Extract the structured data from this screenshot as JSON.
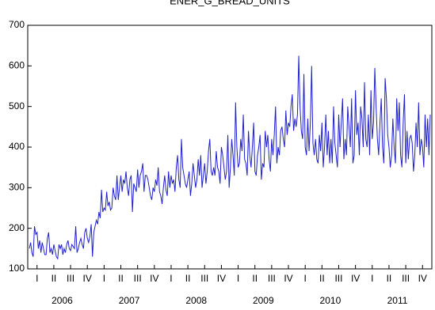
{
  "chart_data": {
    "type": "line",
    "title": "ENER_G_BREAD_UNITS",
    "series": [
      {
        "name": "ENER_G_BREAD_UNITS",
        "color": "#1f1fd0",
        "values": [
          150,
          165,
          140,
          130,
          205,
          185,
          190,
          150,
          170,
          140,
          165,
          150,
          135,
          135,
          175,
          190,
          140,
          150,
          135,
          160,
          145,
          130,
          125,
          160,
          150,
          160,
          135,
          150,
          140,
          160,
          170,
          150,
          145,
          160,
          155,
          150,
          205,
          140,
          150,
          165,
          175,
          160,
          150,
          190,
          200,
          175,
          165,
          180,
          210,
          130,
          190,
          205,
          220,
          210,
          240,
          225,
          295,
          240,
          250,
          245,
          290,
          255,
          265,
          245,
          250,
          300,
          280,
          270,
          330,
          270,
          300,
          330,
          290,
          320,
          310,
          340,
          300,
          280,
          320,
          330,
          240,
          310,
          300,
          290,
          345,
          300,
          330,
          340,
          360,
          290,
          330,
          330,
          320,
          300,
          280,
          270,
          300,
          290,
          320,
          305,
          350,
          290,
          280,
          260,
          300,
          330,
          295,
          280,
          340,
          300,
          330,
          310,
          320,
          290,
          350,
          380,
          320,
          300,
          420,
          350,
          330,
          310,
          300,
          320,
          340,
          280,
          310,
          360,
          330,
          300,
          320,
          370,
          330,
          380,
          300,
          330,
          360,
          310,
          340,
          390,
          420,
          340,
          330,
          350,
          330,
          390,
          350,
          340,
          310,
          400,
          380,
          350,
          320,
          340,
          430,
          300,
          350,
          420,
          380,
          330,
          510,
          400,
          350,
          360,
          420,
          390,
          480,
          370,
          360,
          330,
          440,
          380,
          350,
          400,
          460,
          340,
          330,
          380,
          400,
          430,
          320,
          360,
          350,
          440,
          400,
          430,
          370,
          340,
          420,
          380,
          430,
          500,
          360,
          400,
          380,
          440,
          450,
          420,
          400,
          490,
          430,
          460,
          450,
          500,
          530,
          440,
          470,
          450,
          480,
          625,
          500,
          440,
          420,
          580,
          400,
          380,
          470,
          390,
          460,
          600,
          410,
          380,
          420,
          370,
          360,
          430,
          390,
          460,
          350,
          400,
          480,
          380,
          440,
          360,
          420,
          360,
          500,
          410,
          380,
          350,
          480,
          400,
          460,
          520,
          370,
          420,
          380,
          500,
          450,
          400,
          520,
          360,
          380,
          540,
          430,
          460,
          380,
          500,
          470,
          400,
          560,
          420,
          400,
          480,
          380,
          540,
          420,
          460,
          595,
          500,
          420,
          380,
          460,
          520,
          400,
          360,
          570,
          520,
          430,
          400,
          350,
          380,
          470,
          400,
          360,
          520,
          440,
          510,
          380,
          350,
          460,
          530,
          360,
          440,
          370,
          420,
          430,
          410,
          340,
          380,
          460,
          400,
          510,
          380,
          420,
          400,
          350,
          480,
          400,
          470,
          380,
          480
        ]
      }
    ],
    "xlim": [
      0,
      311
    ],
    "xticks": [
      {
        "value": 6,
        "label": "I"
      },
      {
        "value": 19,
        "label": "II"
      },
      {
        "value": 32,
        "label": "III"
      },
      {
        "value": 45,
        "label": "IV"
      },
      {
        "value": 58,
        "label": "I"
      },
      {
        "value": 71,
        "label": "II"
      },
      {
        "value": 84,
        "label": "III"
      },
      {
        "value": 97,
        "label": "IV"
      },
      {
        "value": 110,
        "label": "I"
      },
      {
        "value": 123,
        "label": "II"
      },
      {
        "value": 136,
        "label": "III"
      },
      {
        "value": 149,
        "label": "IV"
      },
      {
        "value": 162,
        "label": "I"
      },
      {
        "value": 175,
        "label": "II"
      },
      {
        "value": 188,
        "label": "III"
      },
      {
        "value": 201,
        "label": "IV"
      },
      {
        "value": 214,
        "label": "I"
      },
      {
        "value": 227,
        "label": "II"
      },
      {
        "value": 240,
        "label": "III"
      },
      {
        "value": 253,
        "label": "IV"
      },
      {
        "value": 266,
        "label": "I"
      },
      {
        "value": 279,
        "label": "II"
      },
      {
        "value": 292,
        "label": "III"
      },
      {
        "value": 305,
        "label": "IV"
      }
    ],
    "year_labels": [
      {
        "value": 25.5,
        "label": "2006"
      },
      {
        "value": 77.5,
        "label": "2007"
      },
      {
        "value": 129.5,
        "label": "2008"
      },
      {
        "value": 181.5,
        "label": "2009"
      },
      {
        "value": 233.5,
        "label": "2010"
      },
      {
        "value": 285.5,
        "label": "2011"
      }
    ],
    "ylim": [
      100,
      700
    ],
    "yticks": [
      100,
      200,
      300,
      400,
      500,
      600,
      700
    ]
  }
}
